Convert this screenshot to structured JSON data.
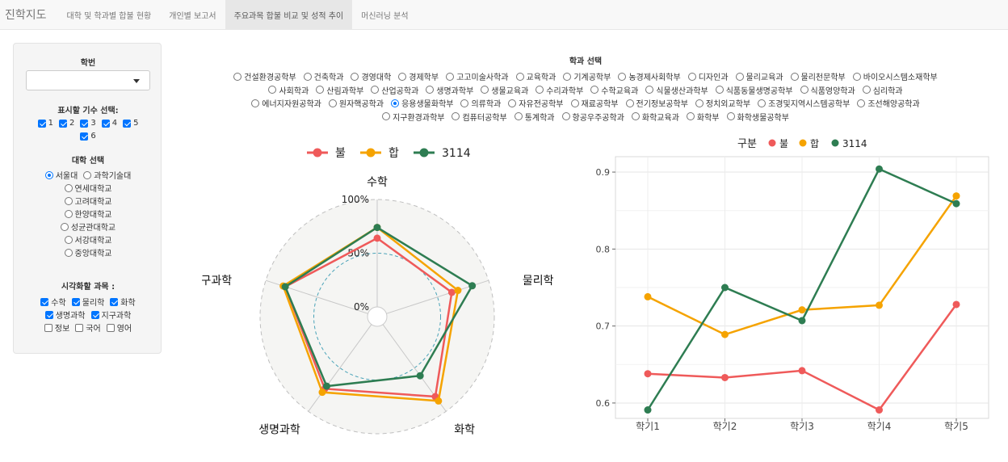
{
  "nav": {
    "brand": "진학지도",
    "tabs": [
      "대학 및 학과별 합불 현황",
      "개인별 보고서",
      "주요과목 합불 비교 및 성적 추이",
      "머신러닝 분석"
    ],
    "active_tab": 2
  },
  "sidebar": {
    "student_id_label": "학번",
    "student_id_value": "",
    "cohort_label": "표시할 기수 선택:",
    "cohorts": [
      {
        "label": "1",
        "checked": true
      },
      {
        "label": "2",
        "checked": true
      },
      {
        "label": "3",
        "checked": true
      },
      {
        "label": "4",
        "checked": true
      },
      {
        "label": "5",
        "checked": true
      },
      {
        "label": "6",
        "checked": true
      }
    ],
    "university_label": "대학 선택",
    "universities": [
      {
        "label": "서울대",
        "checked": true
      },
      {
        "label": "과학기술대",
        "checked": false
      },
      {
        "label": "연세대학교",
        "checked": false
      },
      {
        "label": "고려대학교",
        "checked": false
      },
      {
        "label": "한양대학교",
        "checked": false
      },
      {
        "label": "성균관대학교",
        "checked": false
      },
      {
        "label": "서강대학교",
        "checked": false
      },
      {
        "label": "중앙대학교",
        "checked": false
      }
    ],
    "subject_label": "시각화할 과목 :",
    "subjects": [
      {
        "label": "수학",
        "checked": true
      },
      {
        "label": "물리학",
        "checked": true
      },
      {
        "label": "화학",
        "checked": true
      },
      {
        "label": "생명과학",
        "checked": true
      },
      {
        "label": "지구과학",
        "checked": true
      },
      {
        "label": "정보",
        "checked": false
      },
      {
        "label": "국어",
        "checked": false
      },
      {
        "label": "영어",
        "checked": false
      }
    ]
  },
  "departments": {
    "label": "학과 선택",
    "rows": [
      [
        "건설환경공학부",
        "건축학과",
        "경영대학",
        "경제학부",
        "고고미술사학과",
        "교육학과",
        "기계공학부",
        "농경제사회학부",
        "디자인과",
        "물리교육과",
        "물리천문학부",
        "바이오시스템소재학부"
      ],
      [
        "사회학과",
        "산림과학부",
        "산업공학과",
        "생명과학부",
        "생물교육과",
        "수리과학부",
        "수학교육과",
        "식물생산과학부",
        "식품동물생명공학부",
        "식품영양학과",
        "심리학과"
      ],
      [
        "에너지자원공학과",
        "원자핵공학과",
        "응용생물화학부",
        "의류학과",
        "자유전공학부",
        "재료공학부",
        "전기정보공학부",
        "정치외교학부",
        "조경및지역시스템공학부",
        "조선해양공학과"
      ],
      [
        "지구환경과학부",
        "컴퓨터공학부",
        "통계학과",
        "항공우주공학과",
        "화학교육과",
        "화학부",
        "화학생물공학부"
      ]
    ],
    "selected": "응용생물화학부"
  },
  "colors": {
    "불": "#ef5a5a",
    "합": "#f5a300",
    "3114": "#2e7d52"
  },
  "chart_data": [
    {
      "type": "radar",
      "axes": [
        "수학",
        "물리학",
        "화학",
        "생명과학",
        "지구과학"
      ],
      "tick_labels": [
        "0%",
        "50%",
        "100%"
      ],
      "legend": [
        "불",
        "합",
        "3114"
      ],
      "series": [
        {
          "name": "불",
          "values": [
            0.64,
            0.64,
            0.83,
            0.74,
            0.81
          ]
        },
        {
          "name": "합",
          "values": [
            0.74,
            0.7,
            0.88,
            0.78,
            0.83
          ]
        },
        {
          "name": "3114",
          "values": [
            0.74,
            0.84,
            0.59,
            0.71,
            0.81
          ]
        }
      ]
    },
    {
      "type": "line",
      "legend_title": "구분",
      "categories": [
        "학기1",
        "학기2",
        "학기3",
        "학기4",
        "학기5"
      ],
      "ylim": [
        0.58,
        0.92
      ],
      "yticks": [
        "0.6",
        "0.7",
        "0.8",
        "0.9"
      ],
      "grid": true,
      "series": [
        {
          "name": "불",
          "values": [
            0.638,
            0.633,
            0.642,
            0.591,
            0.728
          ]
        },
        {
          "name": "합",
          "values": [
            0.738,
            0.689,
            0.721,
            0.727,
            0.869
          ]
        },
        {
          "name": "3114",
          "values": [
            0.591,
            0.75,
            0.707,
            0.904,
            0.859
          ]
        }
      ]
    }
  ]
}
